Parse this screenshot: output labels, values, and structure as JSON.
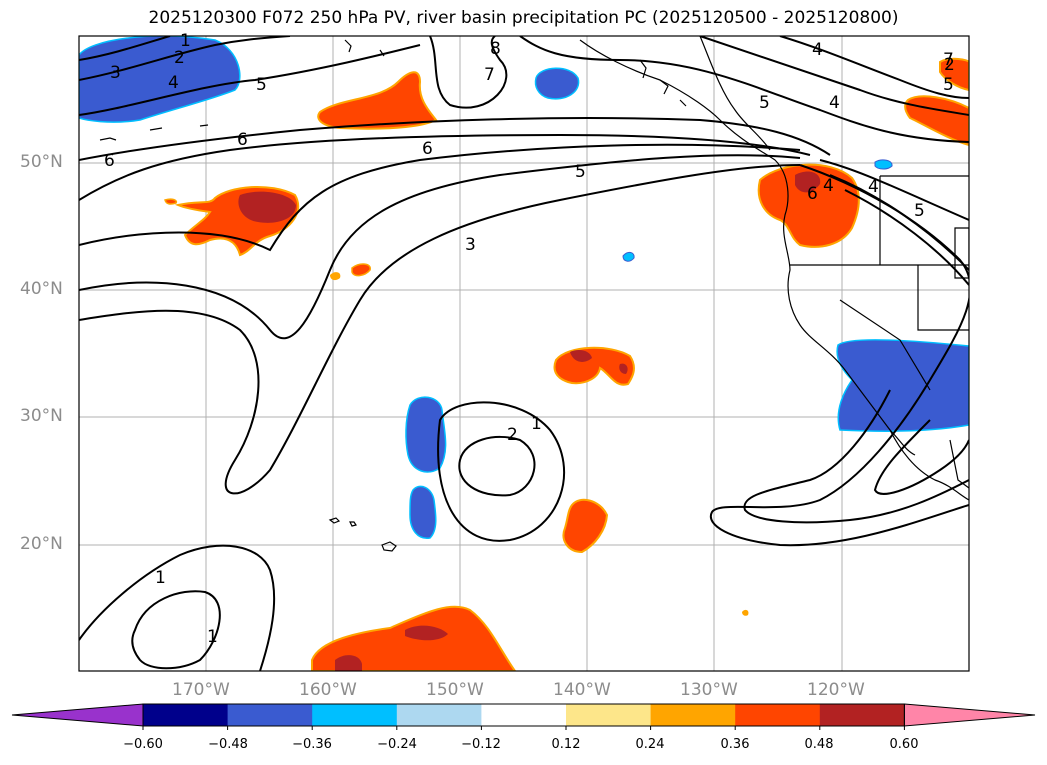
{
  "title": "2025120300 F072 250 hPa PV, river basin precipitation PC (2025120500 - 2025120800)",
  "lat_ticks": [
    "50°N",
    "40°N",
    "30°N",
    "20°N"
  ],
  "lon_ticks": [
    "170°W",
    "160°W",
    "150°W",
    "140°W",
    "130°W",
    "120°W"
  ],
  "contour_labels": [
    "1",
    "2",
    "3",
    "4",
    "5",
    "4",
    "5",
    "6",
    "8",
    "7",
    "4",
    "5",
    "6",
    "6",
    "5",
    "4",
    "3",
    "1",
    "1",
    "2",
    "1",
    "2",
    "4",
    "6",
    "5",
    "7"
  ],
  "colorbar": {
    "ticks": [
      "−0.60",
      "−0.48",
      "−0.36",
      "−0.24",
      "−0.12",
      "0.12",
      "0.24",
      "0.36",
      "0.48",
      "0.60"
    ],
    "colors": [
      "#9932cc",
      "#00008b",
      "#3a5bd0",
      "#00bfff",
      "#add8f0",
      "#ffffff",
      "#fde68a",
      "#ffa500",
      "#ff4500",
      "#b22222",
      "#ff85a8"
    ]
  }
}
